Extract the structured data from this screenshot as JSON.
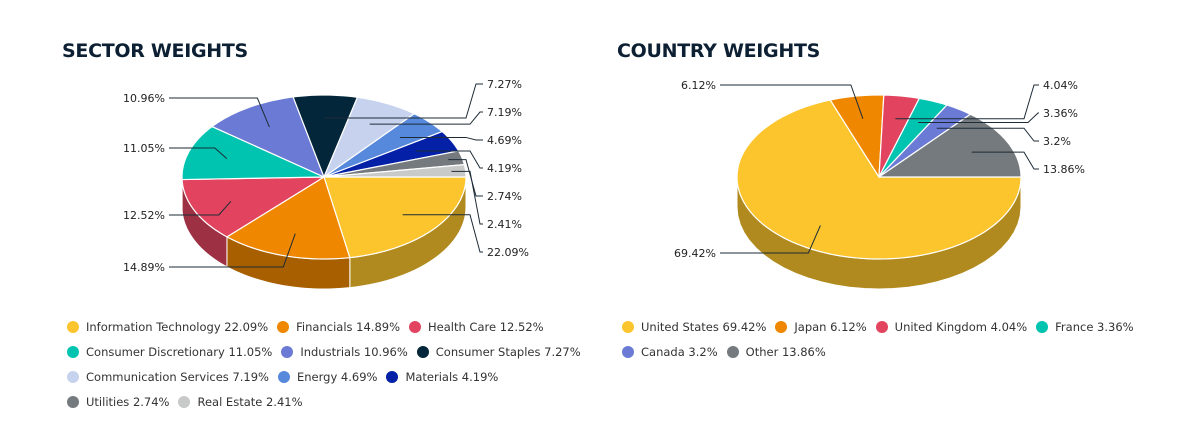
{
  "chart_data": [
    {
      "type": "pie",
      "title": "SECTOR WEIGHTS",
      "slices": [
        {
          "name": "Information Technology",
          "value": 22.09,
          "label": "22.09%",
          "legend": "Information Technology 22.09%",
          "color": "#fdc52d"
        },
        {
          "name": "Financials",
          "value": 14.89,
          "label": "14.89%",
          "legend": "Financials 14.89%",
          "color": "#ef8700"
        },
        {
          "name": "Health Care",
          "value": 12.52,
          "label": "12.52%",
          "legend": "Health Care 12.52%",
          "color": "#e2445f"
        },
        {
          "name": "Consumer Discretionary",
          "value": 11.05,
          "label": "11.05%",
          "legend": "Consumer Discretionary 11.05%",
          "color": "#00c4b0"
        },
        {
          "name": "Industrials",
          "value": 10.96,
          "label": "10.96%",
          "legend": "Industrials 10.96%",
          "color": "#6b7bd5"
        },
        {
          "name": "Consumer Staples",
          "value": 7.27,
          "label": "7.27%",
          "legend": "Consumer Staples 7.27%",
          "color": "#03263a"
        },
        {
          "name": "Communication Services",
          "value": 7.19,
          "label": "7.19%",
          "legend": "Communication Services 7.19%",
          "color": "#c7d3ee"
        },
        {
          "name": "Energy",
          "value": 4.69,
          "label": "4.69%",
          "legend": "Energy 4.69%",
          "color": "#5688dc"
        },
        {
          "name": "Materials",
          "value": 4.19,
          "label": "4.19%",
          "legend": "Materials 4.19%",
          "color": "#0420a6"
        },
        {
          "name": "Utilities",
          "value": 2.74,
          "label": "2.74%",
          "legend": "Utilities 2.74%",
          "color": "#747a7e"
        },
        {
          "name": "Real Estate",
          "value": 2.41,
          "label": "2.41%",
          "legend": "Real Estate 2.41%",
          "color": "#c8c9c9"
        }
      ],
      "legend_placement": "bottom"
    },
    {
      "type": "pie",
      "title": "COUNTRY WEIGHTS",
      "slices": [
        {
          "name": "United States",
          "value": 69.42,
          "label": "69.42%",
          "legend": "United States 69.42%",
          "color": "#fdc52d"
        },
        {
          "name": "Japan",
          "value": 6.12,
          "label": "6.12%",
          "legend": "Japan 6.12%",
          "color": "#ef8700"
        },
        {
          "name": "United Kingdom",
          "value": 4.04,
          "label": "4.04%",
          "legend": "United Kingdom 4.04%",
          "color": "#e2445f"
        },
        {
          "name": "France",
          "value": 3.36,
          "label": "3.36%",
          "legend": "France 3.36%",
          "color": "#00c4b0"
        },
        {
          "name": "Canada",
          "value": 3.2,
          "label": "3.2%",
          "legend": "Canada 3.2%",
          "color": "#6b7bd5"
        },
        {
          "name": "Other",
          "value": 13.86,
          "label": "13.86%",
          "legend": "Other 13.86%",
          "color": "#747a7e"
        }
      ],
      "legend_placement": "bottom"
    }
  ]
}
